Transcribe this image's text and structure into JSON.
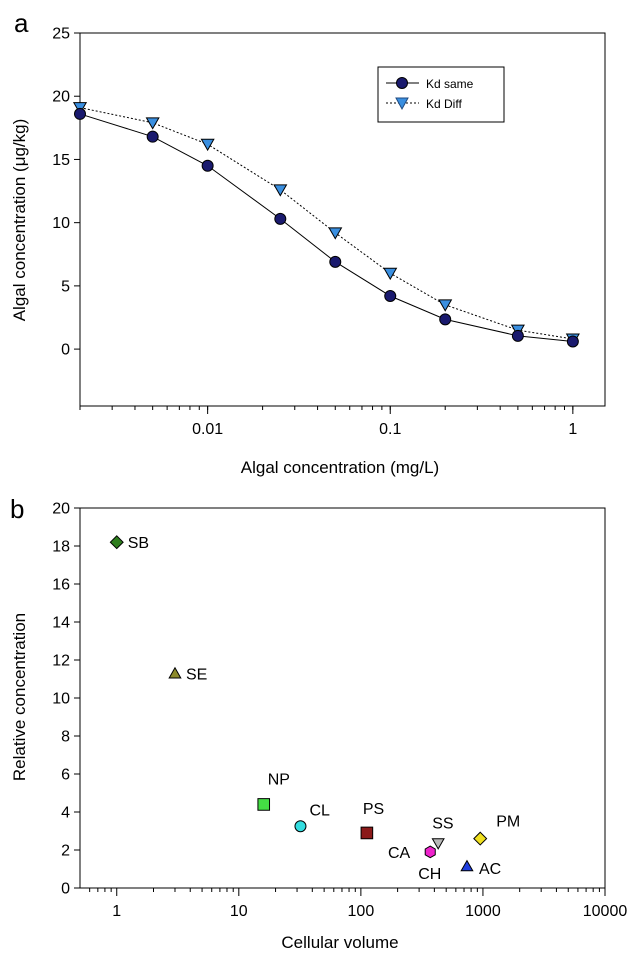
{
  "chart_data": [
    {
      "panel": "a",
      "type": "line",
      "xscale": "log",
      "xlim": [
        0.002,
        1.5
      ],
      "ylim": [
        -4.5,
        25
      ],
      "xlabel": "Algal concentration (mg/L)",
      "ylabel": "Algal concentration (μg/kg)",
      "xticks": [
        0.01,
        0.1,
        1
      ],
      "xtick_labels": [
        "0.01",
        "0.1",
        "1"
      ],
      "yticks": [
        0,
        5,
        10,
        15,
        20,
        25
      ],
      "ytick_labels": [
        "0",
        "5",
        "10",
        "15",
        "20",
        "25"
      ],
      "legend_position": "top-right",
      "x": [
        0.002,
        0.005,
        0.01,
        0.025,
        0.05,
        0.1,
        0.2,
        0.5,
        1
      ],
      "series": [
        {
          "name": "Kd same",
          "values": [
            18.6,
            16.8,
            14.5,
            10.3,
            6.9,
            4.2,
            2.35,
            1.05,
            0.6
          ],
          "color": "#1a1a6e",
          "marker": "circle",
          "line_style": "solid"
        },
        {
          "name": "Kd Diff",
          "values": [
            19.1,
            17.9,
            16.2,
            12.6,
            9.2,
            6.0,
            3.5,
            1.5,
            0.8
          ],
          "color": "#3a8fe0",
          "marker": "triangle-down",
          "line_style": "dotted"
        }
      ]
    },
    {
      "panel": "b",
      "type": "scatter",
      "xscale": "log",
      "xlim": [
        0.5,
        10000
      ],
      "ylim": [
        0,
        20
      ],
      "xlabel": "Cellular volume",
      "ylabel": "Relative concentration",
      "xticks": [
        1,
        10,
        100,
        1000,
        10000
      ],
      "xtick_labels": [
        "1",
        "10",
        "100",
        "1000",
        "10000"
      ],
      "yticks": [
        0,
        2,
        4,
        6,
        8,
        10,
        12,
        14,
        16,
        18,
        20
      ],
      "ytick_labels": [
        "0",
        "2",
        "4",
        "6",
        "8",
        "10",
        "12",
        "14",
        "16",
        "18",
        "20"
      ],
      "points": [
        {
          "label": "SB",
          "x": 1.0,
          "y": 18.2,
          "marker": "diamond",
          "color": "#2e7d1e"
        },
        {
          "label": "SE",
          "x": 3.0,
          "y": 11.3,
          "marker": "triangle-up",
          "color": "#8c8a2a"
        },
        {
          "label": "NP",
          "x": 16,
          "y": 4.4,
          "marker": "square",
          "color": "#44dd44"
        },
        {
          "label": "CL",
          "x": 32,
          "y": 3.25,
          "marker": "circle",
          "color": "#33dde0"
        },
        {
          "label": "PS",
          "x": 112,
          "y": 2.9,
          "marker": "square",
          "color": "#8b1a1a"
        },
        {
          "label": "SS",
          "x": 430,
          "y": 2.35,
          "marker": "triangle-down",
          "color": "#b8b8b8"
        },
        {
          "label": "CA",
          "x": 370,
          "y": 1.9,
          "marker": "hexagon",
          "color": "#ee22cc"
        },
        {
          "label": "CH",
          "x": 370,
          "y": 1.9,
          "marker": "none",
          "color": "#ee22cc"
        },
        {
          "label": "PM",
          "x": 950,
          "y": 2.6,
          "marker": "diamond",
          "color": "#f0e020"
        },
        {
          "label": "AC",
          "x": 740,
          "y": 1.15,
          "marker": "triangle-up",
          "color": "#1f3fe0"
        }
      ]
    }
  ]
}
